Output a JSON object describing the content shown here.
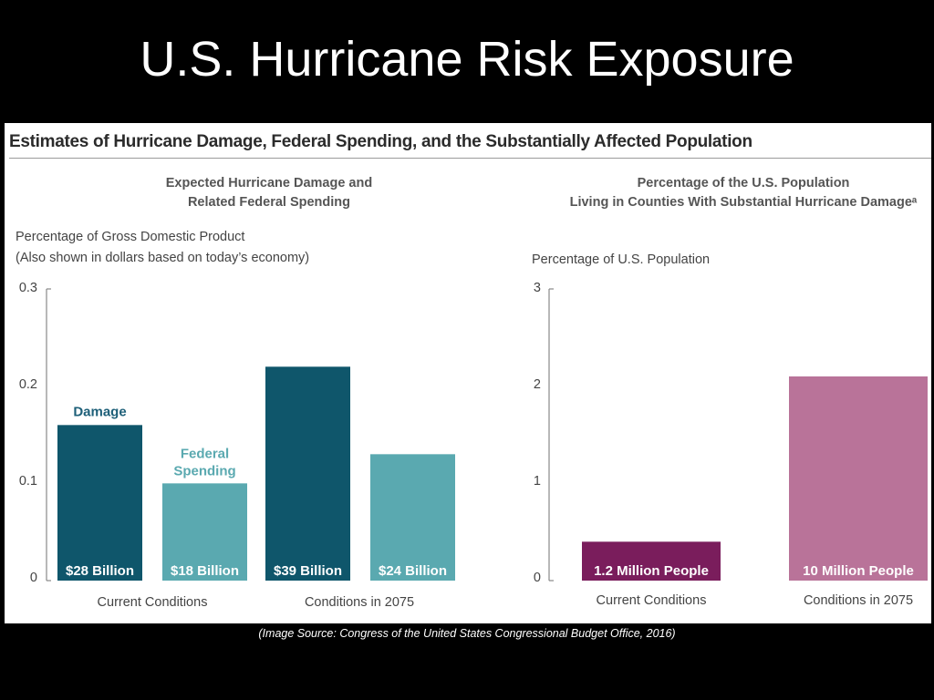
{
  "slide": {
    "title": "U.S. Hurricane Risk Exposure",
    "caption": "(Image Source:  Congress of the United States Congressional Budget Office, 2016)"
  },
  "figure": {
    "title": "Estimates of Hurricane Damage, Federal Spending, and the Substantially Affected Population"
  },
  "colors": {
    "damage": "#0f566b",
    "federal_spending": "#5aa9b0",
    "population_current": "#7a1d5c",
    "population_2075": "#b97399",
    "label_damage": "#1d5f78",
    "label_spending": "#5aa9b0"
  },
  "chart_data": [
    {
      "type": "bar",
      "title_lines": [
        "Expected Hurricane Damage and",
        "Related Federal Spending"
      ],
      "ylabel_lines": [
        "Percentage of Gross Domestic Product",
        "(Also shown in dollars based on today’s economy)"
      ],
      "ylim": [
        0,
        0.3
      ],
      "yticks": [
        "0",
        "0.1",
        "0.2",
        "0.3"
      ],
      "categories": [
        "Current Conditions",
        "Conditions in 2075"
      ],
      "series": [
        {
          "name": "Damage",
          "values": [
            0.16,
            0.22
          ],
          "labels": [
            "$28 Billion",
            "$39 Billion"
          ]
        },
        {
          "name": "Federal Spending",
          "name_lines": [
            "Federal",
            "Spending"
          ],
          "values": [
            0.1,
            0.13
          ],
          "labels": [
            "$18 Billion",
            "$24 Billion"
          ]
        }
      ]
    },
    {
      "type": "bar",
      "title_lines": [
        "Percentage of the U.S. Population",
        "Living in Counties With Substantial Hurricane Damageᵃ"
      ],
      "ylabel_lines": [
        "Percentage of U.S. Population"
      ],
      "ylim": [
        0,
        3
      ],
      "yticks": [
        "0",
        "1",
        "2",
        "3"
      ],
      "categories": [
        "Current Conditions",
        "Conditions in 2075"
      ],
      "series": [
        {
          "values": [
            0.4,
            2.1
          ],
          "labels": [
            "1.2 Million People",
            "10 Million People"
          ]
        }
      ]
    }
  ]
}
